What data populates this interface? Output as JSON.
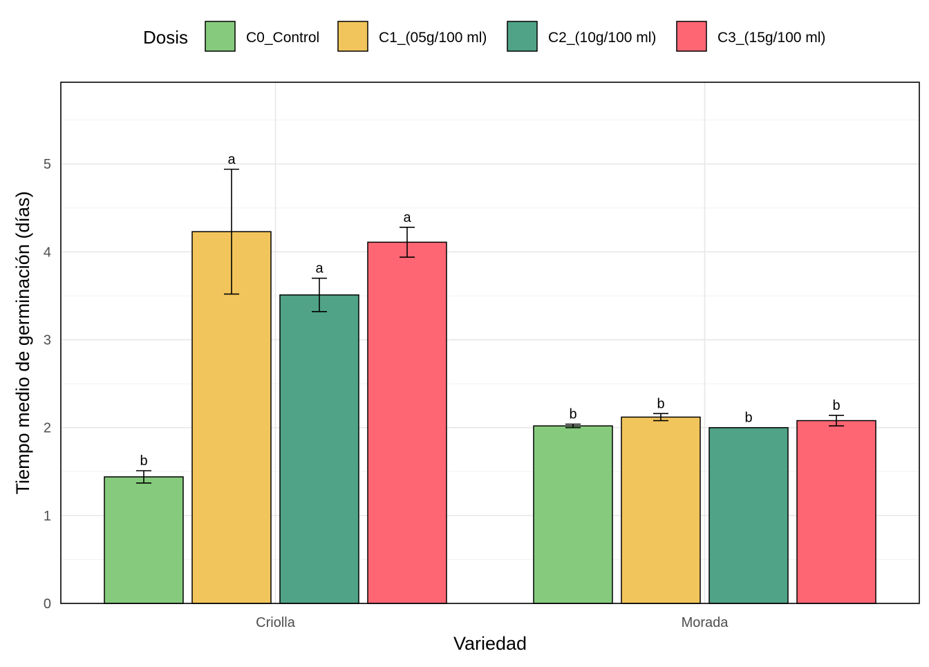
{
  "chart_data": {
    "type": "bar",
    "xlabel": "Variedad",
    "ylabel": "Tiempo medio de germinación (días)",
    "ylim": [
      0,
      5.93
    ],
    "yticks": [
      "0",
      "1",
      "2",
      "3",
      "4",
      "5"
    ],
    "grid": true,
    "legend_title": "Dosis",
    "legend_position": "top",
    "categories": [
      "Criolla",
      "Morada"
    ],
    "series": [
      {
        "name": "C0_Control",
        "color": "#86CB7D",
        "values": [
          1.44,
          2.02
        ],
        "errors": [
          0.07,
          0.02
        ],
        "letters": [
          "b",
          "b"
        ]
      },
      {
        "name": "C1_(05g/100 ml)",
        "color": "#F2C55C",
        "values": [
          4.23,
          2.12
        ],
        "errors": [
          0.71,
          0.04
        ],
        "letters": [
          "a",
          "b"
        ]
      },
      {
        "name": "C2_(10g/100 ml)",
        "color": "#50A386",
        "values": [
          3.51,
          2.0
        ],
        "errors": [
          0.19,
          0.0
        ],
        "letters": [
          "a",
          "b"
        ]
      },
      {
        "name": "C3_(15g/100 ml)",
        "color": "#FF6674",
        "values": [
          4.11,
          2.08
        ],
        "errors": [
          0.17,
          0.06
        ],
        "letters": [
          "a",
          "b"
        ]
      }
    ]
  }
}
